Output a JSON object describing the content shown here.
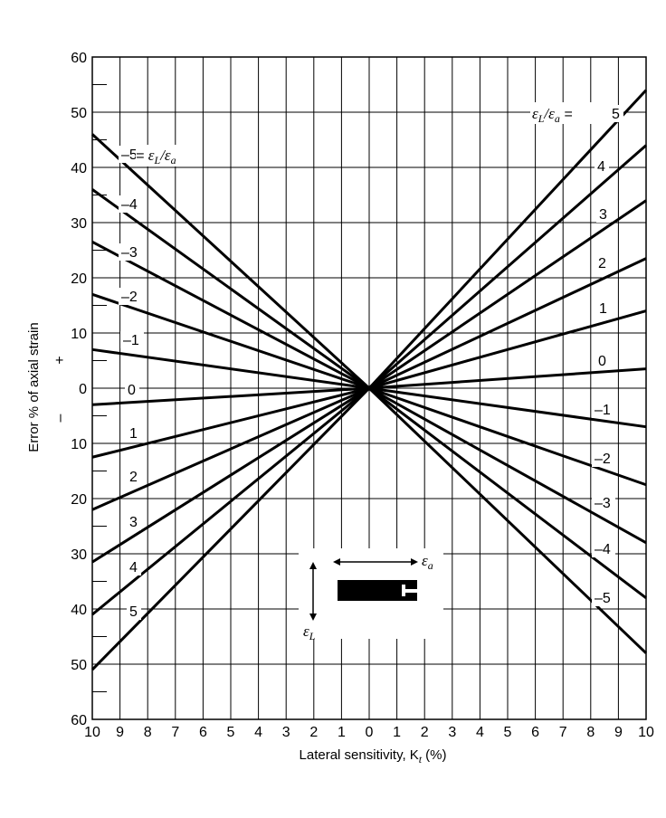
{
  "chart_data": {
    "type": "line",
    "xlabel": "Lateral sensitivity, K",
    "xlabel_sub": "t",
    "xlabel_suffix": "(%)",
    "ylabel": "Error % of axial strain",
    "y_sign_upper": "+",
    "y_sign_lower": "–",
    "x_tick_labels": [
      "10",
      "9",
      "8",
      "7",
      "6",
      "5",
      "4",
      "3",
      "2",
      "1",
      "0",
      "1",
      "2",
      "3",
      "4",
      "5",
      "6",
      "7",
      "8",
      "9",
      "10"
    ],
    "y_tick_labels": [
      "60",
      "50",
      "40",
      "30",
      "20",
      "10",
      "0",
      "10",
      "20",
      "30",
      "40",
      "50",
      "60"
    ],
    "xlim": [
      -10,
      10
    ],
    "ylim": [
      -60,
      60
    ],
    "grid": true,
    "series_key": {
      "epsilon": "ε",
      "L": "L",
      "a": "a"
    },
    "series": [
      {
        "ratio": 5,
        "label": "5",
        "x": [
          0,
          10
        ],
        "y": [
          0,
          54
        ]
      },
      {
        "ratio": 4,
        "label": "4",
        "x": [
          0,
          10
        ],
        "y": [
          0,
          44
        ]
      },
      {
        "ratio": 3,
        "label": "3",
        "x": [
          0,
          10
        ],
        "y": [
          0,
          34
        ]
      },
      {
        "ratio": 2,
        "label": "2",
        "x": [
          0,
          10
        ],
        "y": [
          0,
          23.5
        ]
      },
      {
        "ratio": 1,
        "label": "1",
        "x": [
          0,
          10
        ],
        "y": [
          0,
          14
        ]
      },
      {
        "ratio": 0,
        "label": "0",
        "x": [
          0,
          10
        ],
        "y": [
          0,
          3.5
        ]
      },
      {
        "ratio": -1,
        "label": "–1",
        "x": [
          0,
          10
        ],
        "y": [
          0,
          -7
        ]
      },
      {
        "ratio": -2,
        "label": "–2",
        "x": [
          0,
          10
        ],
        "y": [
          0,
          -17.5
        ]
      },
      {
        "ratio": -3,
        "label": "–3",
        "x": [
          0,
          10
        ],
        "y": [
          0,
          -28
        ]
      },
      {
        "ratio": -4,
        "label": "–4",
        "x": [
          0,
          10
        ],
        "y": [
          0,
          -38
        ]
      },
      {
        "ratio": -5,
        "label": "–5",
        "x": [
          0,
          10
        ],
        "y": [
          0,
          -48
        ]
      },
      {
        "ratio": -5,
        "label": "–5",
        "x": [
          -10,
          0
        ],
        "y": [
          46,
          0
        ]
      },
      {
        "ratio": -4,
        "label": "–4",
        "x": [
          -10,
          0
        ],
        "y": [
          36,
          0
        ]
      },
      {
        "ratio": -3,
        "label": "–3",
        "x": [
          -10,
          0
        ],
        "y": [
          26.5,
          0
        ]
      },
      {
        "ratio": -2,
        "label": "–2",
        "x": [
          -10,
          0
        ],
        "y": [
          17,
          0
        ]
      },
      {
        "ratio": -1,
        "label": "–1",
        "x": [
          -10,
          0
        ],
        "y": [
          7,
          0
        ]
      },
      {
        "ratio": 0,
        "label": "0",
        "x": [
          -10,
          0
        ],
        "y": [
          -3,
          0
        ]
      },
      {
        "ratio": 1,
        "label": "1",
        "x": [
          -10,
          0
        ],
        "y": [
          -12.5,
          0
        ]
      },
      {
        "ratio": 2,
        "label": "2",
        "x": [
          -10,
          0
        ],
        "y": [
          -22,
          0
        ]
      },
      {
        "ratio": 3,
        "label": "3",
        "x": [
          -10,
          0
        ],
        "y": [
          -31.5,
          0
        ]
      },
      {
        "ratio": 4,
        "label": "4",
        "x": [
          -10,
          0
        ],
        "y": [
          -41,
          0
        ]
      },
      {
        "ratio": 5,
        "label": "5",
        "x": [
          -10,
          0
        ],
        "y": [
          -51,
          0
        ]
      }
    ],
    "gauge_inset": {
      "axial_symbol": "ε",
      "axial_sub": "a",
      "lateral_symbol": "ε",
      "lateral_sub": "L"
    }
  }
}
